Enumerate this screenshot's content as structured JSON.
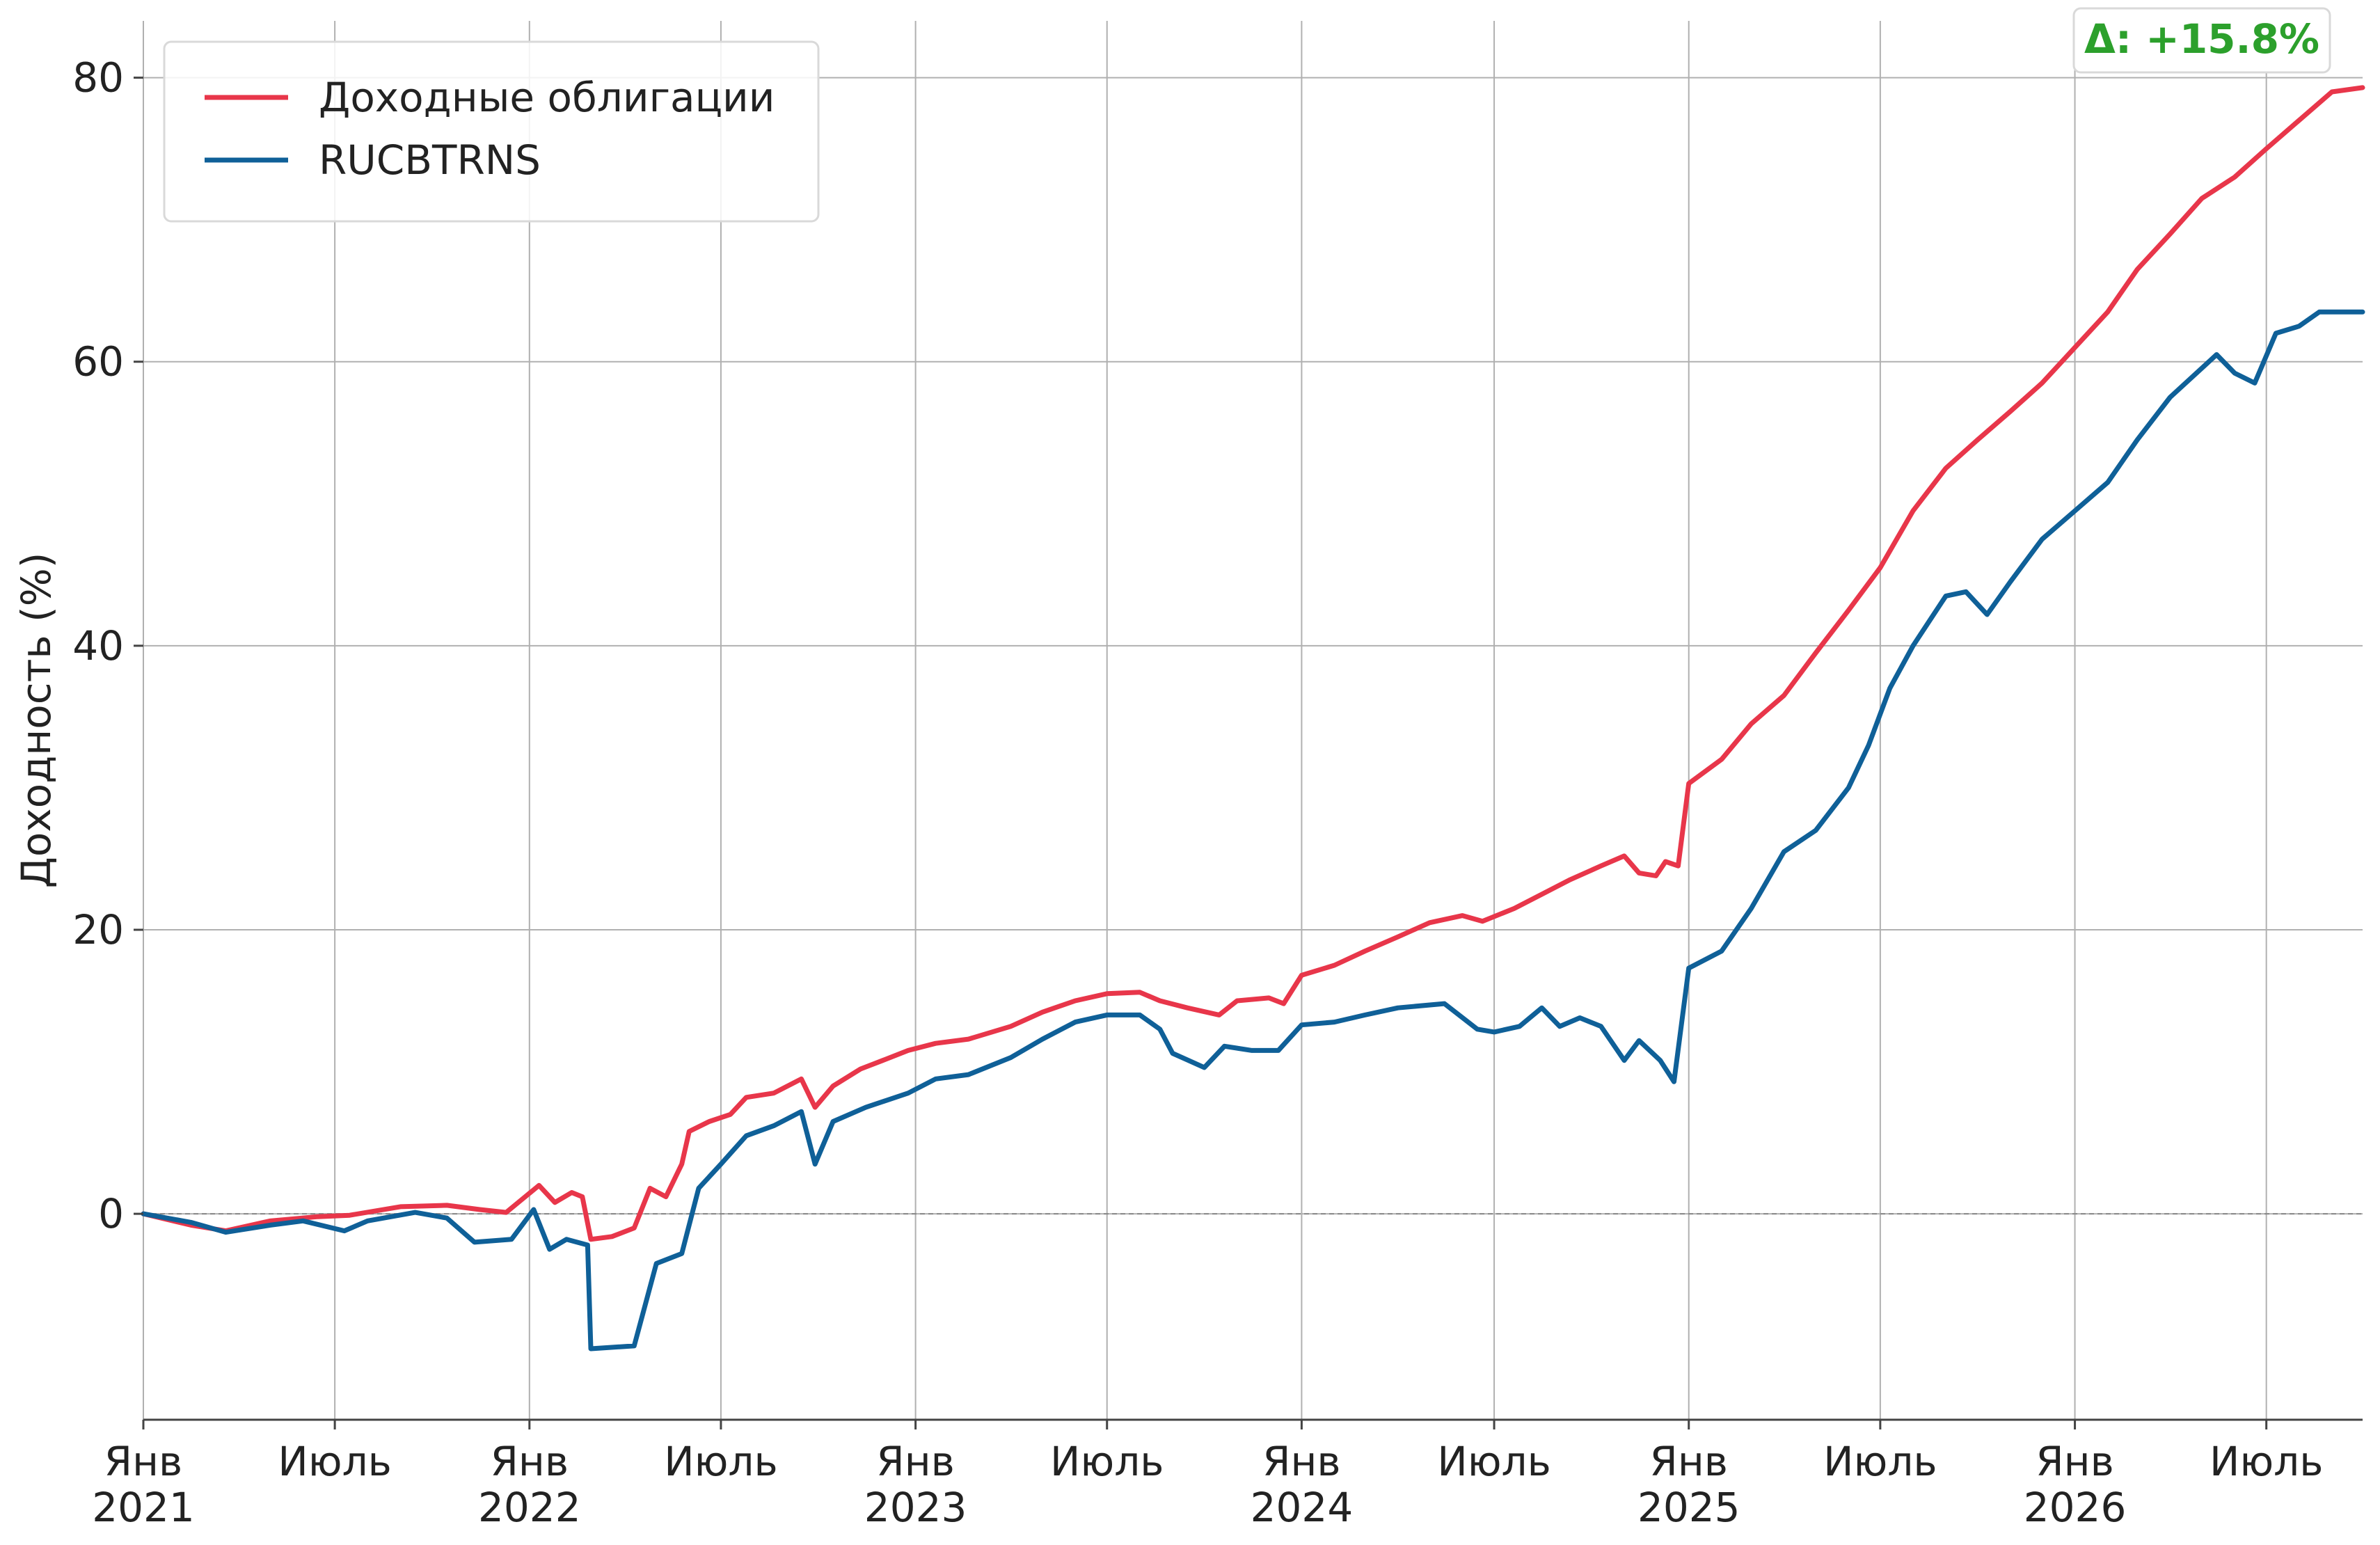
{
  "chart_data": {
    "type": "line",
    "title": "",
    "xlabel": "",
    "ylabel": "Доходность (%)",
    "ylim": [
      -14.5,
      84
    ],
    "xlim": [
      "2021-01-01",
      "2026-09-30"
    ],
    "grid": true,
    "legend_position": "top-left",
    "y_ticks": [
      "0",
      "20",
      "40",
      "60",
      "80"
    ],
    "x_ticks": [
      {
        "date": "2021-01-01",
        "line1": "Янв",
        "line2": "2021"
      },
      {
        "date": "2021-07-01",
        "line1": "Июль",
        "line2": ""
      },
      {
        "date": "2022-01-01",
        "line1": "Янв",
        "line2": "2022"
      },
      {
        "date": "2022-07-01",
        "line1": "Июль",
        "line2": ""
      },
      {
        "date": "2023-01-01",
        "line1": "Янв",
        "line2": "2023"
      },
      {
        "date": "2023-07-01",
        "line1": "Июль",
        "line2": ""
      },
      {
        "date": "2024-01-01",
        "line1": "Янв",
        "line2": "2024"
      },
      {
        "date": "2024-07-01",
        "line1": "Июль",
        "line2": ""
      },
      {
        "date": "2025-01-01",
        "line1": "Янв",
        "line2": "2025"
      },
      {
        "date": "2025-07-01",
        "line1": "Июль",
        "line2": ""
      },
      {
        "date": "2026-01-01",
        "line1": "Янв",
        "line2": "2026"
      },
      {
        "date": "2026-07-01",
        "line1": "Июль",
        "line2": ""
      }
    ],
    "annotation": {
      "text": "Δ: +15.8%",
      "color": "#2ca02c"
    },
    "series": [
      {
        "name": "Доходные облигации",
        "color": "#e8364a",
        "points": [
          [
            "2021-01-01",
            0.0
          ],
          [
            "2021-02-15",
            -0.8
          ],
          [
            "2021-03-20",
            -1.2
          ],
          [
            "2021-05-01",
            -0.5
          ],
          [
            "2021-06-15",
            -0.2
          ],
          [
            "2021-07-15",
            -0.1
          ],
          [
            "2021-09-01",
            0.5
          ],
          [
            "2021-10-15",
            0.6
          ],
          [
            "2021-11-15",
            0.3
          ],
          [
            "2021-12-10",
            0.1
          ],
          [
            "2022-01-10",
            2.0
          ],
          [
            "2022-01-25",
            0.8
          ],
          [
            "2022-02-10",
            1.5
          ],
          [
            "2022-02-20",
            1.2
          ],
          [
            "2022-02-28",
            -1.8
          ],
          [
            "2022-03-20",
            -1.6
          ],
          [
            "2022-04-10",
            -1.0
          ],
          [
            "2022-04-25",
            1.8
          ],
          [
            "2022-05-10",
            1.2
          ],
          [
            "2022-05-25",
            3.5
          ],
          [
            "2022-06-01",
            5.8
          ],
          [
            "2022-06-20",
            6.5
          ],
          [
            "2022-07-10",
            7.0
          ],
          [
            "2022-07-25",
            8.2
          ],
          [
            "2022-08-20",
            8.5
          ],
          [
            "2022-09-15",
            9.5
          ],
          [
            "2022-09-28",
            7.5
          ],
          [
            "2022-10-15",
            9.0
          ],
          [
            "2022-11-10",
            10.2
          ],
          [
            "2022-12-01",
            10.8
          ],
          [
            "2022-12-25",
            11.5
          ],
          [
            "2023-01-20",
            12.0
          ],
          [
            "2023-02-20",
            12.3
          ],
          [
            "2023-04-01",
            13.2
          ],
          [
            "2023-05-01",
            14.2
          ],
          [
            "2023-06-01",
            15.0
          ],
          [
            "2023-07-01",
            15.5
          ],
          [
            "2023-08-01",
            15.6
          ],
          [
            "2023-08-20",
            15.0
          ],
          [
            "2023-09-15",
            14.5
          ],
          [
            "2023-10-15",
            14.0
          ],
          [
            "2023-11-01",
            15.0
          ],
          [
            "2023-12-01",
            15.2
          ],
          [
            "2023-12-15",
            14.8
          ],
          [
            "2024-01-01",
            16.8
          ],
          [
            "2024-02-01",
            17.5
          ],
          [
            "2024-03-01",
            18.5
          ],
          [
            "2024-04-01",
            19.5
          ],
          [
            "2024-05-01",
            20.5
          ],
          [
            "2024-06-01",
            21.0
          ],
          [
            "2024-06-20",
            20.6
          ],
          [
            "2024-07-20",
            21.5
          ],
          [
            "2024-08-15",
            22.5
          ],
          [
            "2024-09-10",
            23.5
          ],
          [
            "2024-10-10",
            24.5
          ],
          [
            "2024-11-01",
            25.2
          ],
          [
            "2024-11-15",
            24.0
          ],
          [
            "2024-12-01",
            23.8
          ],
          [
            "2024-12-10",
            24.8
          ],
          [
            "2024-12-22",
            24.5
          ],
          [
            "2025-01-01",
            30.3
          ],
          [
            "2025-02-01",
            32.0
          ],
          [
            "2025-03-01",
            34.5
          ],
          [
            "2025-04-01",
            36.5
          ],
          [
            "2025-05-01",
            39.5
          ],
          [
            "2025-06-01",
            42.5
          ],
          [
            "2025-07-01",
            45.5
          ],
          [
            "2025-08-01",
            49.5
          ],
          [
            "2025-09-01",
            52.5
          ],
          [
            "2025-10-01",
            54.5
          ],
          [
            "2025-11-01",
            56.5
          ],
          [
            "2025-12-01",
            58.5
          ],
          [
            "2026-01-01",
            61.0
          ],
          [
            "2026-02-01",
            63.5
          ],
          [
            "2026-03-01",
            66.5
          ],
          [
            "2026-04-01",
            69.0
          ],
          [
            "2026-05-01",
            71.5
          ],
          [
            "2026-06-01",
            73.0
          ],
          [
            "2026-07-01",
            75.0
          ],
          [
            "2026-08-01",
            77.0
          ],
          [
            "2026-09-01",
            79.0
          ],
          [
            "2026-09-30",
            79.3
          ]
        ]
      },
      {
        "name": "RUCBTRNS",
        "color": "#0f6098",
        "points": [
          [
            "2021-01-01",
            0.0
          ],
          [
            "2021-02-15",
            -0.6
          ],
          [
            "2021-03-20",
            -1.3
          ],
          [
            "2021-05-01",
            -0.8
          ],
          [
            "2021-06-01",
            -0.5
          ],
          [
            "2021-07-10",
            -1.2
          ],
          [
            "2021-08-01",
            -0.5
          ],
          [
            "2021-09-15",
            0.1
          ],
          [
            "2021-10-15",
            -0.3
          ],
          [
            "2021-11-10",
            -2.0
          ],
          [
            "2021-12-15",
            -1.8
          ],
          [
            "2022-01-05",
            0.3
          ],
          [
            "2022-01-20",
            -2.5
          ],
          [
            "2022-02-05",
            -1.8
          ],
          [
            "2022-02-25",
            -2.2
          ],
          [
            "2022-02-28",
            -9.5
          ],
          [
            "2022-04-10",
            -9.3
          ],
          [
            "2022-05-01",
            -3.5
          ],
          [
            "2022-05-25",
            -2.8
          ],
          [
            "2022-06-10",
            1.8
          ],
          [
            "2022-07-01",
            3.5
          ],
          [
            "2022-07-25",
            5.5
          ],
          [
            "2022-08-20",
            6.2
          ],
          [
            "2022-09-15",
            7.2
          ],
          [
            "2022-09-28",
            3.5
          ],
          [
            "2022-10-15",
            6.5
          ],
          [
            "2022-11-15",
            7.5
          ],
          [
            "2022-12-25",
            8.5
          ],
          [
            "2023-01-20",
            9.5
          ],
          [
            "2023-02-20",
            9.8
          ],
          [
            "2023-04-01",
            11.0
          ],
          [
            "2023-05-01",
            12.3
          ],
          [
            "2023-06-01",
            13.5
          ],
          [
            "2023-07-01",
            14.0
          ],
          [
            "2023-08-01",
            14.0
          ],
          [
            "2023-08-20",
            13.0
          ],
          [
            "2023-09-01",
            11.3
          ],
          [
            "2023-10-01",
            10.3
          ],
          [
            "2023-10-20",
            11.8
          ],
          [
            "2023-11-15",
            11.5
          ],
          [
            "2023-12-10",
            11.5
          ],
          [
            "2024-01-01",
            13.3
          ],
          [
            "2024-02-01",
            13.5
          ],
          [
            "2024-03-01",
            14.0
          ],
          [
            "2024-04-01",
            14.5
          ],
          [
            "2024-05-15",
            14.8
          ],
          [
            "2024-06-15",
            13.0
          ],
          [
            "2024-07-01",
            12.8
          ],
          [
            "2024-07-25",
            13.2
          ],
          [
            "2024-08-15",
            14.5
          ],
          [
            "2024-09-01",
            13.2
          ],
          [
            "2024-09-20",
            13.8
          ],
          [
            "2024-10-10",
            13.2
          ],
          [
            "2024-11-01",
            10.8
          ],
          [
            "2024-11-15",
            12.2
          ],
          [
            "2024-12-05",
            10.8
          ],
          [
            "2024-12-18",
            9.3
          ],
          [
            "2025-01-01",
            17.3
          ],
          [
            "2025-02-01",
            18.5
          ],
          [
            "2025-03-01",
            21.5
          ],
          [
            "2025-04-01",
            25.5
          ],
          [
            "2025-05-01",
            27.0
          ],
          [
            "2025-06-01",
            30.0
          ],
          [
            "2025-06-20",
            33.0
          ],
          [
            "2025-07-10",
            37.0
          ],
          [
            "2025-08-01",
            40.0
          ],
          [
            "2025-09-01",
            43.5
          ],
          [
            "2025-09-20",
            43.8
          ],
          [
            "2025-10-10",
            42.2
          ],
          [
            "2025-11-01",
            44.5
          ],
          [
            "2025-12-01",
            47.5
          ],
          [
            "2026-01-01",
            49.5
          ],
          [
            "2026-02-01",
            51.5
          ],
          [
            "2026-03-01",
            54.5
          ],
          [
            "2026-04-01",
            57.5
          ],
          [
            "2026-05-15",
            60.5
          ],
          [
            "2026-06-01",
            59.2
          ],
          [
            "2026-06-20",
            58.5
          ],
          [
            "2026-07-10",
            62.0
          ],
          [
            "2026-08-01",
            62.5
          ],
          [
            "2026-08-20",
            63.5
          ],
          [
            "2026-09-30",
            63.5
          ]
        ]
      }
    ]
  }
}
